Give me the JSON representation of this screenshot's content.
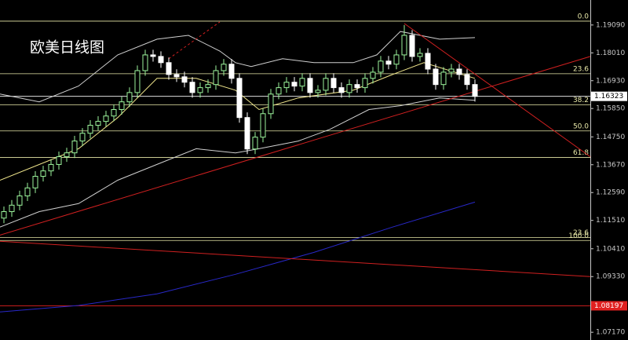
{
  "chart_data": {
    "type": "candlestick",
    "title": "欧美日线图",
    "ylim": [
      1.0687,
      1.2006
    ],
    "xlim": [
      -0.5,
      74.7
    ],
    "yticks": [
      {
        "value": 1.1909,
        "label": "1.19090"
      },
      {
        "value": 1.1801,
        "label": "1.18010"
      },
      {
        "value": 1.1693,
        "label": "1.16930"
      },
      {
        "value": 1.1585,
        "label": "1.15850"
      },
      {
        "value": 1.1475,
        "label": "1.14750"
      },
      {
        "value": 1.1367,
        "label": "1.13670"
      },
      {
        "value": 1.1259,
        "label": "1.12590"
      },
      {
        "value": 1.1151,
        "label": "1.11510"
      },
      {
        "value": 1.1041,
        "label": "1.10410"
      },
      {
        "value": 1.0933,
        "label": "1.09330"
      },
      {
        "value": 1.0717,
        "label": "1.07170"
      }
    ],
    "up_color": "#9cf59c",
    "down_color": "#ffffff",
    "open": [
      1.116,
      1.1185,
      1.121,
      1.1246,
      1.1277,
      1.1322,
      1.1343,
      1.1368,
      1.1398,
      1.1413,
      1.1459,
      1.1489,
      1.152,
      1.1535,
      1.1556,
      1.1581,
      1.1611,
      1.1647,
      1.1732,
      1.1793,
      1.1787,
      1.1763,
      1.1717,
      1.1708,
      1.1687,
      1.1647,
      1.1666,
      1.1678,
      1.1732,
      1.1757,
      1.1702,
      1.155,
      1.1428,
      1.1474,
      1.1565,
      1.1641,
      1.1666,
      1.1687,
      1.1672,
      1.1702,
      1.1647,
      1.1656,
      1.1702,
      1.1666,
      1.1647,
      1.1678,
      1.1666,
      1.1702,
      1.1726,
      1.1769,
      1.1757,
      1.1793,
      1.1869,
      1.1787,
      1.1799,
      1.1738,
      1.1678,
      1.1726,
      1.1738,
      1.1717,
      1.1678
    ],
    "high": [
      1.1205,
      1.123,
      1.1266,
      1.1297,
      1.1342,
      1.1363,
      1.1388,
      1.1418,
      1.1433,
      1.1479,
      1.1509,
      1.154,
      1.1555,
      1.1576,
      1.1601,
      1.1631,
      1.1667,
      1.1752,
      1.1813,
      1.1813,
      1.1807,
      1.1783,
      1.1737,
      1.1728,
      1.1707,
      1.1686,
      1.1698,
      1.1752,
      1.1777,
      1.1777,
      1.1722,
      1.157,
      1.1494,
      1.1585,
      1.1661,
      1.1686,
      1.1707,
      1.1707,
      1.1722,
      1.1722,
      1.1676,
      1.1722,
      1.1722,
      1.1686,
      1.1698,
      1.1698,
      1.1722,
      1.1746,
      1.1789,
      1.1789,
      1.1813,
      1.1909,
      1.1889,
      1.1819,
      1.1819,
      1.1758,
      1.1746,
      1.1758,
      1.1758,
      1.1737,
      1.1698
    ],
    "low": [
      1.114,
      1.1165,
      1.119,
      1.1226,
      1.1257,
      1.1302,
      1.1323,
      1.1348,
      1.1378,
      1.1393,
      1.1439,
      1.1469,
      1.15,
      1.1515,
      1.1536,
      1.1561,
      1.1591,
      1.1627,
      1.1712,
      1.1767,
      1.1743,
      1.1697,
      1.1688,
      1.1667,
      1.1627,
      1.1627,
      1.1646,
      1.1658,
      1.1712,
      1.1682,
      1.153,
      1.1408,
      1.1408,
      1.1454,
      1.1545,
      1.1621,
      1.1646,
      1.1652,
      1.1652,
      1.1627,
      1.1627,
      1.1636,
      1.1646,
      1.1627,
      1.1627,
      1.1646,
      1.1646,
      1.1682,
      1.1706,
      1.1737,
      1.1737,
      1.1773,
      1.1767,
      1.1767,
      1.1718,
      1.1658,
      1.1658,
      1.1706,
      1.1697,
      1.1658,
      1.1612
    ],
    "close": [
      1.1185,
      1.121,
      1.1246,
      1.1277,
      1.1322,
      1.1343,
      1.1368,
      1.1398,
      1.1413,
      1.1459,
      1.1489,
      1.152,
      1.1535,
      1.1556,
      1.1581,
      1.1611,
      1.1647,
      1.1732,
      1.1793,
      1.1787,
      1.1763,
      1.1717,
      1.1708,
      1.1687,
      1.1647,
      1.1666,
      1.1678,
      1.1732,
      1.1757,
      1.1702,
      1.155,
      1.1428,
      1.1474,
      1.1565,
      1.1641,
      1.1666,
      1.1687,
      1.1672,
      1.1702,
      1.1647,
      1.1656,
      1.1702,
      1.1666,
      1.1647,
      1.1678,
      1.1666,
      1.1702,
      1.1726,
      1.1769,
      1.1757,
      1.1793,
      1.1869,
      1.1787,
      1.1799,
      1.1738,
      1.1678,
      1.1726,
      1.1738,
      1.1717,
      1.1678,
      1.16323
    ],
    "level_color": "#e8e8a8",
    "levels": [
      {
        "label": "0.0",
        "value": 1.1924
      },
      {
        "label": "23.6",
        "value": 1.172
      },
      {
        "label": "38.2",
        "value": 1.1599
      },
      {
        "label": "50.0",
        "value": 1.1498
      },
      {
        "label": "61.8",
        "value": 1.1395
      },
      {
        "label": "23.6",
        "value": 1.1085
      },
      {
        "label": "100.0",
        "value": 1.1073
      }
    ],
    "current_price": 1.16323,
    "current_color": "#ffffff",
    "alert_price": 1.08197,
    "alert_color": "#e02020",
    "overlays": [
      {
        "color": "#d0d0d0",
        "x": [
          -0.5,
          4.5,
          9.5,
          14.5,
          19.5,
          23.5,
          27.5,
          29.5,
          31.5,
          35.5,
          39.5,
          44.5,
          47.5,
          50.5,
          55.5,
          60
        ],
        "values": [
          1.1641,
          1.1611,
          1.1672,
          1.1793,
          1.1854,
          1.1869,
          1.1808,
          1.1763,
          1.1748,
          1.1778,
          1.1763,
          1.1763,
          1.1793,
          1.1884,
          1.1854,
          1.186
        ]
      },
      {
        "color": "#d0d0d0",
        "x": [
          -0.5,
          4.5,
          9.5,
          14.5,
          19.5,
          24.5,
          29.5,
          32.5,
          37.5,
          41.5,
          46.5,
          50.5,
          55.5,
          60
        ],
        "values": [
          1.1125,
          1.1185,
          1.1216,
          1.1307,
          1.1368,
          1.1429,
          1.1413,
          1.1429,
          1.1459,
          1.1504,
          1.1581,
          1.1596,
          1.1626,
          1.1617
        ]
      },
      {
        "color": "#f0e68c",
        "x": [
          -0.5,
          9.5,
          14.5,
          19.5,
          24.5,
          29.5,
          32.5,
          37.5,
          44.5,
          49.5,
          53.5,
          60
        ],
        "values": [
          1.1307,
          1.1429,
          1.155,
          1.1702,
          1.1702,
          1.1656,
          1.1581,
          1.1626,
          1.1656,
          1.1717,
          1.1763,
          1.1702
        ]
      },
      {
        "color": "#2828c8",
        "x": [
          -0.5,
          9.5,
          19.5,
          29.5,
          39.5,
          49.5,
          60
        ],
        "values": [
          1.0796,
          1.0821,
          1.0866,
          1.0942,
          1.1027,
          1.1125,
          1.1222
        ]
      }
    ],
    "trendlines": [
      {
        "color": "#d02020",
        "dashed": false,
        "x": [
          -0.5,
          74.7
        ],
        "values": [
          1.1094,
          1.1787
        ]
      },
      {
        "color": "#d02020",
        "dashed": false,
        "x": [
          51,
          74.7
        ],
        "values": [
          1.1915,
          1.1398
        ]
      },
      {
        "color": "#d02020",
        "dashed": false,
        "x": [
          -0.5,
          74.7
        ],
        "values": [
          1.107,
          1.0933
        ]
      },
      {
        "color": "#d02020",
        "dashed": true,
        "x": [
          21,
          27.5
        ],
        "values": [
          1.1778,
          1.1921
        ]
      }
    ]
  }
}
